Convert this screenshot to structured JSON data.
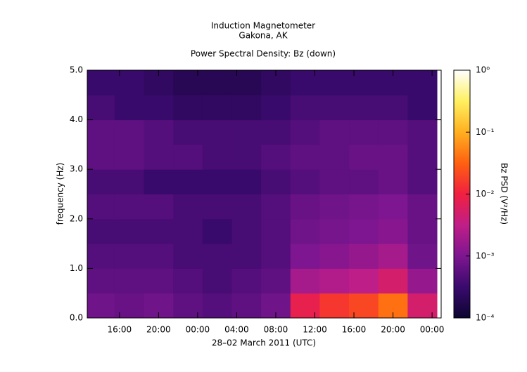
{
  "chart_data": {
    "type": "heatmap",
    "title": "Induction Magnetometer",
    "subtitle": "Gakona, AK",
    "plot_title": "Power Spectral Density: Bz (down)",
    "x_label": "28–02 March 2011 (UTC)",
    "y_label": "frequency (Hz)",
    "colorbar_label": "Bz PSD (V²/Hz)",
    "x": [
      14,
      17,
      20,
      23,
      26,
      29,
      32,
      35,
      38,
      41,
      44,
      47
    ],
    "y": [
      0.25,
      0.75,
      1.25,
      1.75,
      2.25,
      2.75,
      3.25,
      3.75,
      4.25,
      4.75
    ],
    "values": [
      [
        0.0008,
        0.0007,
        0.0008,
        0.0006,
        0.0005,
        0.0006,
        0.0008,
        0.008,
        0.015,
        0.02,
        0.04,
        0.005
      ],
      [
        0.0006,
        0.0006,
        0.0006,
        0.0005,
        0.0004,
        0.0005,
        0.0006,
        0.002,
        0.0025,
        0.003,
        0.005,
        0.0015
      ],
      [
        0.0005,
        0.0005,
        0.0005,
        0.0004,
        0.0004,
        0.0004,
        0.0005,
        0.001,
        0.0012,
        0.0015,
        0.002,
        0.0008
      ],
      [
        0.0004,
        0.0004,
        0.0004,
        0.0004,
        0.0003,
        0.0004,
        0.0005,
        0.0008,
        0.0009,
        0.001,
        0.0012,
        0.0007
      ],
      [
        0.0005,
        0.0005,
        0.0005,
        0.0004,
        0.0004,
        0.0004,
        0.0005,
        0.0007,
        0.0008,
        0.0009,
        0.001,
        0.0007
      ],
      [
        0.0004,
        0.0004,
        0.0003,
        0.0003,
        0.0003,
        0.0003,
        0.0004,
        0.0005,
        0.0006,
        0.0006,
        0.0007,
        0.0005
      ],
      [
        0.0006,
        0.0006,
        0.0005,
        0.0005,
        0.0004,
        0.0004,
        0.0005,
        0.0006,
        0.0006,
        0.0007,
        0.0007,
        0.0005
      ],
      [
        0.0006,
        0.0006,
        0.0005,
        0.0004,
        0.0004,
        0.0004,
        0.0004,
        0.0005,
        0.0006,
        0.0006,
        0.0006,
        0.0005
      ],
      [
        0.0004,
        0.0003,
        0.0003,
        0.00025,
        0.00025,
        0.00025,
        0.0003,
        0.0004,
        0.0004,
        0.0004,
        0.0004,
        0.0003
      ],
      [
        0.0003,
        0.0003,
        0.00025,
        0.0002,
        0.0002,
        0.0002,
        0.00025,
        0.0003,
        0.0003,
        0.0003,
        0.0003,
        0.0003
      ]
    ],
    "xlim": [
      12.7,
      48.93
    ],
    "xticks": [
      {
        "value": 16,
        "label": "16:00"
      },
      {
        "value": 20,
        "label": "20:00"
      },
      {
        "value": 24,
        "label": "00:00"
      },
      {
        "value": 28,
        "label": "04:00"
      },
      {
        "value": 32,
        "label": "08:00"
      },
      {
        "value": 36,
        "label": "12:00"
      },
      {
        "value": 40,
        "label": "16:00"
      },
      {
        "value": 44,
        "label": "20:00"
      },
      {
        "value": 48,
        "label": "00:00"
      }
    ],
    "ylim": [
      0,
      5
    ],
    "yticks": [
      {
        "value": 0,
        "label": "0.0"
      },
      {
        "value": 1,
        "label": "1.0"
      },
      {
        "value": 2,
        "label": "2.0"
      },
      {
        "value": 3,
        "label": "3.0"
      },
      {
        "value": 4,
        "label": "4.0"
      },
      {
        "value": 5,
        "label": "5.0"
      }
    ],
    "zlim": [
      0.0001,
      1
    ],
    "zscale": "log",
    "zticks": [
      {
        "value": 0.0001,
        "label": "10⁻⁴"
      },
      {
        "value": 0.001,
        "label": "10⁻³"
      },
      {
        "value": 0.01,
        "label": "10⁻²"
      },
      {
        "value": 0.1,
        "label": "10⁻¹"
      },
      {
        "value": 1,
        "label": "10⁰"
      }
    ],
    "colormap": [
      "#0c0530",
      "#3a0a6e",
      "#7d1690",
      "#c01e88",
      "#f02040",
      "#ff6010",
      "#ffb020",
      "#fff060",
      "#ffffff"
    ]
  }
}
